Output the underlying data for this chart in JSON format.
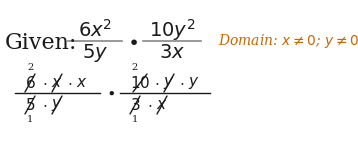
{
  "background_color": "#ffffff",
  "black": "#1a1a1a",
  "orange": "#cc6600",
  "figsize": [
    3.58,
    1.63
  ],
  "dpi": 100
}
